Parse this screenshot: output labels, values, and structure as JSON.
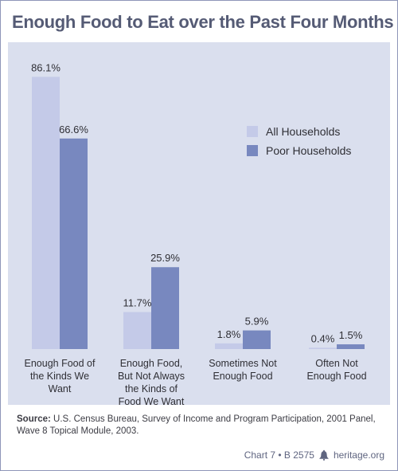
{
  "chart_data": {
    "type": "bar",
    "title": "Enough Food to Eat over the Past Four Months",
    "categories": [
      [
        "Enough Food of",
        "the Kinds We",
        "Want"
      ],
      [
        "Enough Food,",
        "But Not Always",
        "the Kinds of",
        "Food We Want"
      ],
      [
        "Sometimes Not",
        "Enough Food"
      ],
      [
        "Often Not",
        "Enough Food"
      ]
    ],
    "series": [
      {
        "name": "All Households",
        "color": "#c4cae8",
        "values": [
          86.1,
          11.7,
          1.8,
          0.4
        ],
        "labels": [
          "86.1%",
          "11.7%",
          "1.8%",
          "0.4%"
        ]
      },
      {
        "name": "Poor Households",
        "color": "#7888bf",
        "values": [
          66.6,
          25.9,
          5.9,
          1.5
        ],
        "labels": [
          "66.6%",
          "25.9%",
          "5.9%",
          "1.5%"
        ]
      }
    ],
    "ylim": [
      0,
      100
    ],
    "grid": false,
    "legend_position": "right"
  },
  "source": {
    "label": "Source:",
    "text": "U.S. Census Bureau, Survey of Income and Program Participation, 2001 Panel, Wave 8 Topical Module, 2003."
  },
  "footer": {
    "chart_ref": "Chart 7 • B 2575",
    "site": "heritage.org",
    "logo_icon": "liberty-bell-icon"
  }
}
